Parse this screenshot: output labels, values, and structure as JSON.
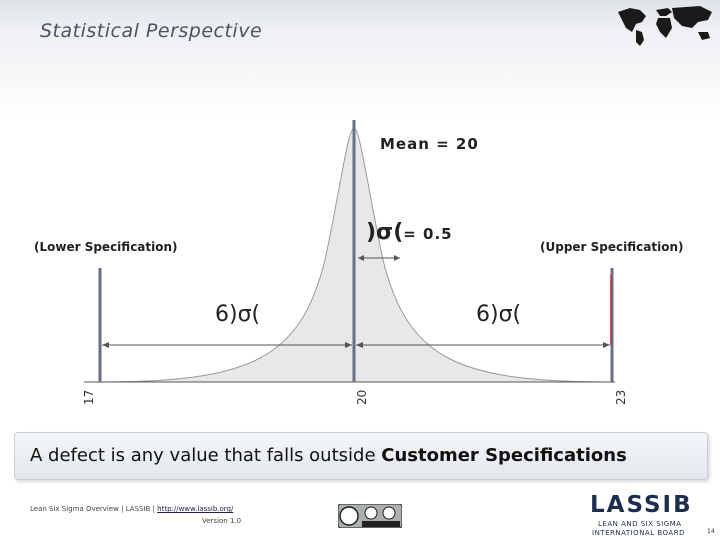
{
  "slide": {
    "title": "Statistical Perspective",
    "page_number": "14"
  },
  "diagram": {
    "mean_label": "Mean = 20",
    "sigma_symbol": ")σ(",
    "sigma_value": "= 0.5",
    "lower_spec_label": "(Lower Specification)",
    "upper_spec_label": "(Upper Specification)",
    "six_sigma_left": "6)σ(",
    "six_sigma_right": "6)σ(",
    "ticks": {
      "low": "17",
      "mid": "20",
      "high": "23"
    },
    "curve_color": "#e6e6e6",
    "spec_line_color": "#6a6f86",
    "upper_spec_color": "#c0283a"
  },
  "banner": {
    "prefix": "A defect is any value that falls outside ",
    "emphasis": "Customer Specifications"
  },
  "footer": {
    "course": "Lean Six Sigma Overview  |  LASSIB  |  ",
    "url": "http://www.lassib.org/",
    "version": "Version 1.0",
    "cc_label": "cc by sa"
  },
  "logo": {
    "name": "LASSIB",
    "sub1": "LEAN AND SIX SIGMA",
    "sub2": "INTERNATIONAL BOARD",
    "accent_color": "#1c2e50"
  }
}
